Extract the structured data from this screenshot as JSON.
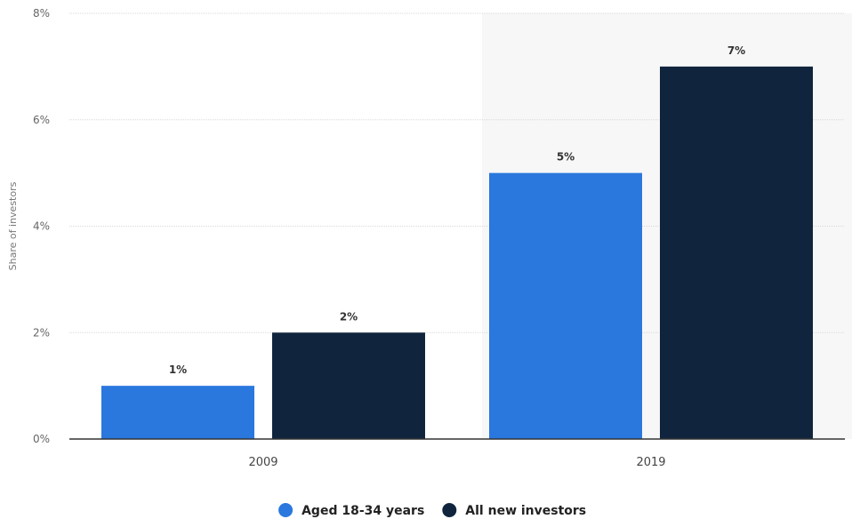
{
  "chart_data": {
    "type": "bar",
    "categories": [
      "2009",
      "2019"
    ],
    "series": [
      {
        "name": "Aged 18-34 years",
        "values": [
          1,
          5
        ],
        "labels": [
          "1%",
          "5%"
        ],
        "color": "#2a78de"
      },
      {
        "name": "All new investors",
        "values": [
          2,
          7
        ],
        "labels": [
          "2%",
          "7%"
        ],
        "color": "#10253d"
      }
    ],
    "ylabel": "Share of investors",
    "ylim": [
      0,
      8
    ],
    "yticks": [
      0,
      2,
      4,
      6,
      8
    ],
    "ytick_labels": [
      "0%",
      "2%",
      "4%",
      "6%",
      "8%"
    ],
    "grid": true,
    "legend": "bottom-center",
    "highlighted_category": "2019",
    "colors": {
      "highlight_band": "#f7f7f7",
      "grid": "#d9d9d9",
      "axis": "#333333"
    }
  }
}
